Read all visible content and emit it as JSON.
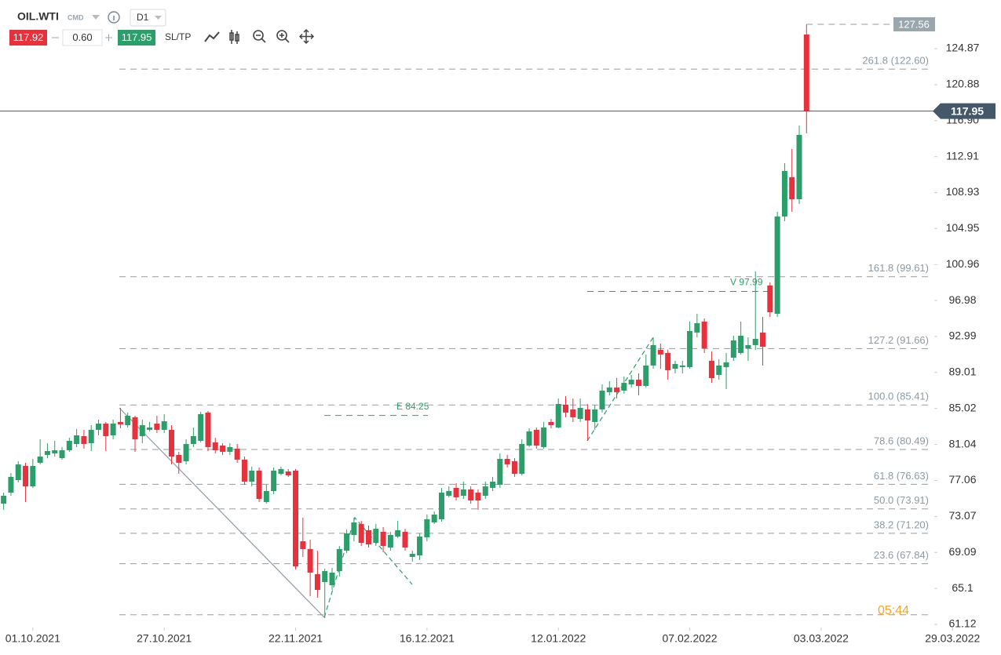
{
  "header": {
    "symbol": "OIL.WTI",
    "market": "CMD",
    "timeframe": "D1",
    "bid": "117.92",
    "spread": "0.60",
    "ask": "117.95",
    "sltp": "SL/TP"
  },
  "chart_data": {
    "type": "candlestick",
    "xlim": [
      -0.5,
      127.5
    ],
    "xticks": [
      {
        "value": 4,
        "label": "01.10.2021"
      },
      {
        "value": 22,
        "label": "27.10.2021"
      },
      {
        "value": 40,
        "label": "22.11.2021"
      },
      {
        "value": 58,
        "label": "16.12.2021"
      },
      {
        "value": 76,
        "label": "12.01.2022"
      },
      {
        "value": 94,
        "label": "07.02.2022"
      },
      {
        "value": 112,
        "label": "03.03.2022"
      },
      {
        "value": 130,
        "label": "29.03.2022"
      }
    ],
    "ylim": [
      60.77,
      130.25
    ],
    "yticks": [
      124.87,
      120.88,
      {
        "value": 116.9,
        "label": "116.90"
      },
      112.91,
      108.93,
      104.95,
      100.96,
      96.98,
      92.99,
      89.01,
      85.02,
      81.04,
      77.06,
      73.07,
      69.09,
      65.1,
      61.12
    ],
    "up_color": "#2b9e6a",
    "down_color": "#e5323d",
    "open": [
      74.49,
      75.71,
      77.1,
      78.66,
      76.4,
      79.01,
      79.88,
      80.05,
      79.53,
      80.4,
      81.09,
      81.96,
      81.18,
      82.66,
      83.35,
      82.05,
      83.53,
      83.18,
      84.05,
      81.96,
      82.66,
      83.35,
      82.66,
      82.66,
      79.88,
      79.18,
      81.09,
      81.44,
      84.57,
      81.27,
      80.92,
      80.23,
      80.57,
      79.36,
      76.92,
      78.14,
      74.67,
      75.88,
      77.79,
      78.05,
      78.14,
      70.32,
      69.46,
      66.68,
      65.81,
      65.46,
      67.02,
      69.28,
      71.02,
      72.23,
      71.54,
      70.15,
      71.37,
      69.63,
      70.84,
      71.37,
      68.59,
      68.76,
      70.76,
      72.41,
      72.76,
      75.36,
      76.23,
      75.36,
      76.06,
      75.71,
      75.36,
      76.23,
      76.58,
      79.44,
      79.18,
      77.79,
      80.92,
      82.66,
      80.75,
      83.53,
      82.92,
      85.44,
      84.92,
      83.87,
      84.92,
      83.53,
      84.92,
      86.83,
      87.34,
      87.0,
      87.69,
      88.21,
      87.52,
      89.78,
      91.52,
      91.17,
      89.43,
      89.6,
      89.6,
      93.43,
      94.64,
      90.3,
      88.74,
      89.6,
      90.65,
      91.17,
      91.69,
      92.04,
      93.43,
      98.64,
      95.51,
      106.28,
      110.62,
      108.19,
      126.43
    ],
    "high": [
      75.71,
      77.88,
      79.18,
      79.01,
      79.44,
      81.61,
      81.18,
      81.44,
      80.75,
      81.79,
      82.75,
      82.66,
      83.18,
      83.79,
      83.53,
      83.79,
      85.09,
      84.57,
      84.22,
      83.79,
      83.53,
      84.22,
      84.4,
      83.18,
      80.23,
      81.61,
      82.92,
      84.66,
      84.74,
      81.79,
      81.18,
      81.18,
      81.09,
      79.7,
      78.58,
      78.49,
      76.58,
      78.49,
      78.58,
      78.32,
      78.32,
      72.93,
      70.5,
      69.28,
      67.29,
      67.37,
      69.8,
      71.63,
      72.93,
      72.58,
      72.06,
      72.23,
      71.89,
      71.37,
      72.58,
      71.71,
      69.28,
      71.19,
      73.28,
      73.62,
      76.23,
      76.4,
      76.75,
      76.92,
      76.4,
      76.06,
      76.92,
      77.45,
      80.05,
      79.88,
      79.53,
      81.61,
      82.83,
      82.92,
      83.53,
      83.87,
      86.13,
      86.39,
      86.13,
      86.13,
      85.52,
      85.44,
      87.69,
      88.04,
      88.39,
      88.56,
      88.74,
      88.91,
      90.99,
      92.9,
      92.21,
      91.52,
      90.3,
      90.3,
      94.64,
      95.51,
      94.99,
      91.34,
      90.47,
      91.17,
      93.08,
      94.64,
      92.9,
      100.2,
      95.16,
      98.98,
      106.8,
      112.19,
      113.75,
      116.35,
      127.56
    ],
    "low": [
      73.8,
      75.36,
      76.84,
      74.67,
      76.23,
      78.83,
      79.53,
      79.7,
      79.36,
      80.23,
      80.75,
      80.57,
      80.31,
      82.05,
      80.31,
      81.61,
      82.83,
      82.92,
      80.23,
      81.18,
      82.49,
      82.31,
      82.31,
      78.83,
      77.79,
      78.83,
      80.75,
      81.27,
      80.31,
      80.05,
      79.88,
      79.88,
      79.01,
      76.58,
      76.4,
      74.67,
      74.49,
      75.53,
      77.62,
      77.45,
      67.2,
      68.59,
      64.25,
      64.07,
      61.81,
      64.94,
      66.42,
      69.02,
      70.32,
      69.8,
      69.63,
      69.8,
      69.11,
      69.28,
      70.67,
      69.28,
      68.07,
      68.24,
      70.32,
      72.23,
      72.5,
      75.19,
      74.84,
      75.01,
      74.49,
      73.8,
      75.01,
      75.88,
      76.23,
      78.49,
      77.45,
      77.62,
      80.75,
      80.57,
      80.57,
      82.83,
      82.83,
      84.05,
      83.53,
      83.53,
      81.44,
      82.66,
      84.57,
      86.48,
      86.13,
      86.65,
      87.34,
      86.48,
      87.34,
      89.43,
      89.43,
      88.21,
      88.91,
      88.91,
      89.43,
      92.9,
      91.17,
      87.87,
      88.21,
      87.17,
      90.3,
      91.0,
      90.3,
      91.52,
      89.78,
      95.16,
      95.16,
      105.76,
      106.8,
      107.67,
      115.49
    ],
    "close": [
      75.36,
      77.45,
      78.83,
      76.4,
      78.66,
      79.7,
      80.31,
      80.4,
      80.4,
      81.44,
      82.05,
      81.09,
      82.66,
      83.35,
      81.96,
      83.35,
      83.27,
      84.22,
      81.61,
      83.18,
      82.92,
      82.66,
      83.61,
      79.7,
      79.01,
      81.09,
      81.96,
      84.4,
      80.75,
      80.4,
      80.23,
      80.75,
      79.36,
      76.92,
      78.14,
      75.01,
      75.88,
      78.14,
      78.32,
      77.62,
      67.54,
      69.46,
      66.85,
      64.94,
      67.02,
      66.85,
      69.46,
      71.19,
      72.41,
      70.15,
      69.98,
      71.71,
      69.8,
      71.02,
      71.54,
      69.63,
      68.93,
      70.84,
      72.76,
      73.28,
      75.71,
      75.88,
      75.19,
      76.06,
      74.84,
      74.84,
      76.4,
      76.92,
      79.44,
      78.83,
      77.79,
      81.09,
      82.49,
      80.92,
      82.92,
      83.18,
      85.52,
      84.57,
      84.05,
      85.09,
      83.7,
      84.92,
      87.0,
      87.34,
      86.83,
      87.86,
      88.21,
      87.52,
      89.78,
      92.04,
      91.0,
      89.26,
      89.95,
      89.78,
      93.6,
      94.47,
      91.69,
      88.39,
      89.78,
      90.13,
      92.56,
      93.08,
      92.04,
      92.73,
      91.86,
      95.68,
      106.28,
      111.32,
      108.19,
      115.31,
      117.95
    ],
    "last_price": 117.95,
    "fib_levels": [
      {
        "label": "261.8 (122.60)",
        "value": 122.6
      },
      {
        "label": "161.8 (99.61)",
        "value": 99.61
      },
      {
        "label": "127.2 (91.66)",
        "value": 91.66
      },
      {
        "label": "100.0 (85.41)",
        "value": 85.41
      },
      {
        "label": "78.6 (80.49)",
        "value": 80.49
      },
      {
        "label": "61.8 (76.63)",
        "value": 76.63
      },
      {
        "label": "50.0 (73.91)",
        "value": 73.91
      },
      {
        "label": "38.2 (71.20)",
        "value": 71.2
      },
      {
        "label": "23.6 (67.84)",
        "value": 67.84
      }
    ],
    "fib_base": 62.18,
    "markers": [
      {
        "label": "E 84.25",
        "value": 84.25
      },
      {
        "label": "V 97.99",
        "value": 97.99
      }
    ],
    "countdown": "05:44"
  }
}
